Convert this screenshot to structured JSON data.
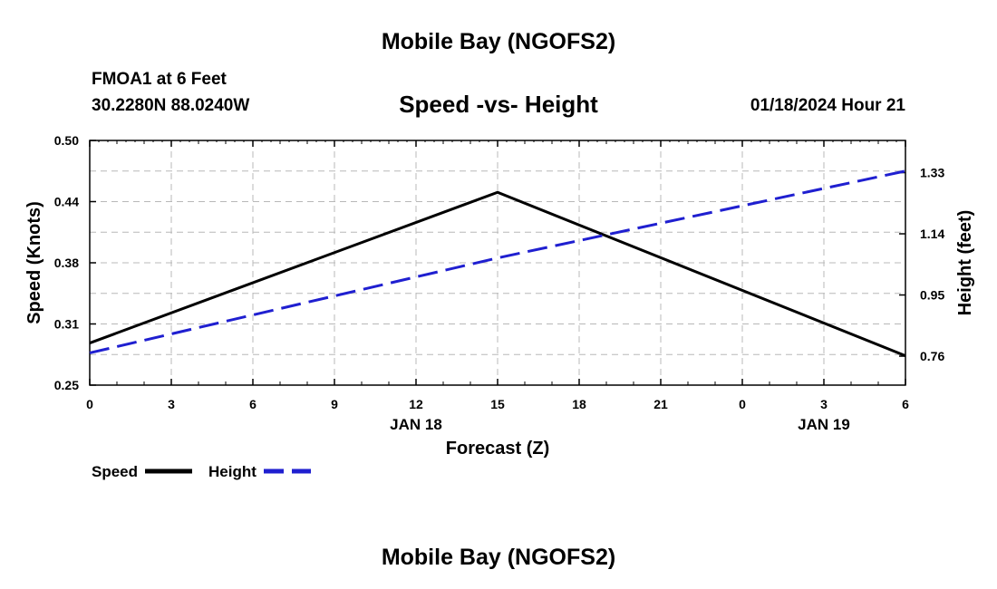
{
  "header": {
    "title": "Mobile Bay (NGOFS2)",
    "station": "FMOA1 at 6 Feet",
    "coords": "30.2280N  88.0240W",
    "subtitle": "Speed -vs- Height",
    "datetime": "01/18/2024 Hour 21"
  },
  "footer": {
    "title": "Mobile Bay (NGOFS2)"
  },
  "colors": {
    "speed": "#000000",
    "height": "#1f1fd0",
    "grid": "#b8b8b8"
  },
  "chart_data": {
    "type": "line",
    "xlabel": "Forecast (Z)",
    "ylabel": "Speed (Knots)",
    "y2label": "Height (feet)",
    "x": [
      0,
      15,
      30
    ],
    "xlim": [
      0,
      30
    ],
    "x_ticks": [
      "0",
      "3",
      "6",
      "9",
      "12",
      "15",
      "18",
      "21",
      "0",
      "3",
      "6"
    ],
    "date_labels": [
      {
        "label": "JAN 18",
        "x": 12
      },
      {
        "label": "JAN 19",
        "x": 27
      }
    ],
    "ylim": [
      0.25,
      0.5
    ],
    "y_ticks": [
      "0.25",
      "0.31",
      "0.38",
      "0.44",
      "0.50"
    ],
    "y2lim": [
      0.67,
      1.43
    ],
    "y2_ticks": [
      "0.76",
      "0.95",
      "1.14",
      "1.33"
    ],
    "grid": true,
    "legend_position": "bottom-left",
    "series": [
      {
        "name": "Speed",
        "axis": "left",
        "style": "solid",
        "values": [
          0.293,
          0.447,
          0.28
        ]
      },
      {
        "name": "Height",
        "axis": "right",
        "style": "dashed",
        "values": [
          0.77,
          1.065,
          1.335
        ]
      }
    ]
  }
}
